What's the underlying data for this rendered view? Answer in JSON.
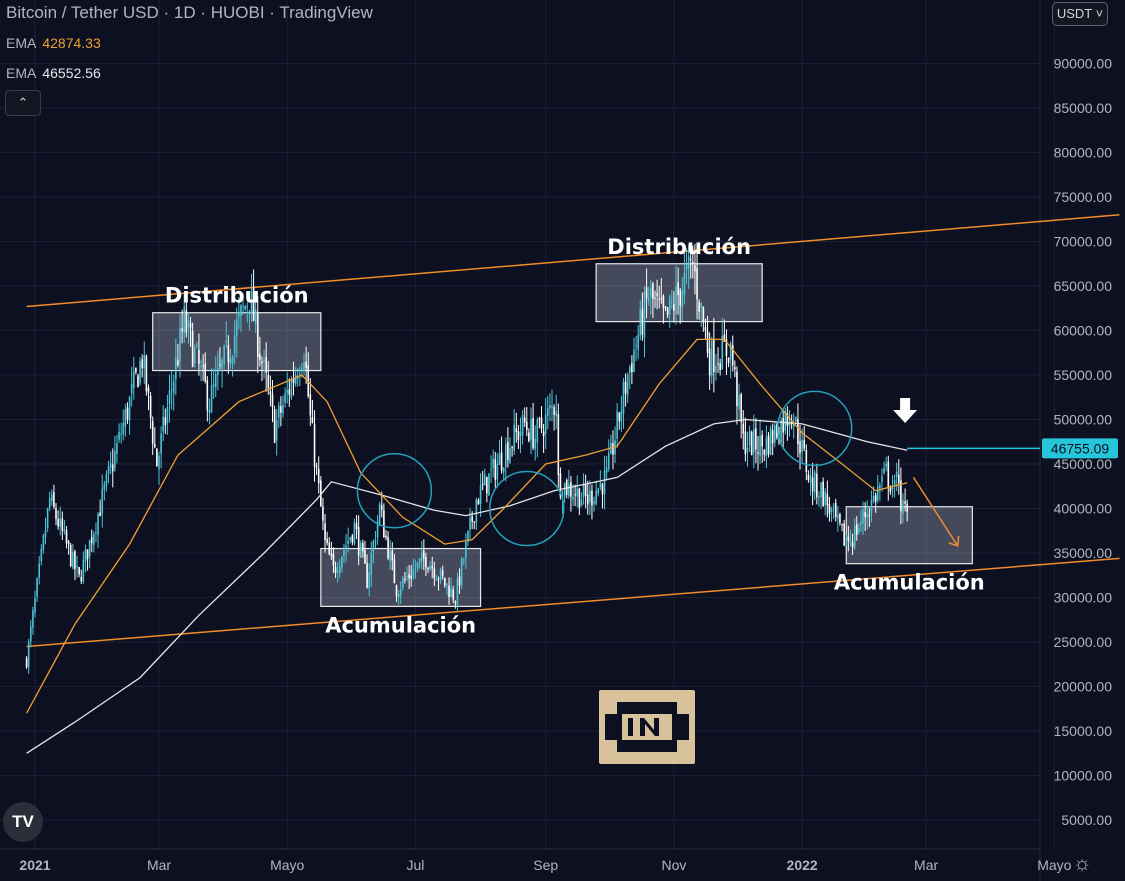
{
  "header": {
    "title": "Bitcoin / Tether USD · 1D · HUOBI · TradingView",
    "ema_short_label": "EMA",
    "ema_short_value": "42874.33",
    "ema_long_label": "EMA",
    "ema_long_value": "46552.56",
    "collapse_icon": "chevron-up-icon"
  },
  "currency_button": "USDT ˅",
  "colors": {
    "background": "#0c1021",
    "candle_up": "#4fc3d6",
    "candle_down": "#ffffff",
    "ema_short": "#f0a030",
    "ema_long": "#e6e6e6",
    "trendline": "#f28c28",
    "price_tag": "#26c6da",
    "circle": "#26a0b8"
  },
  "chart_data": {
    "type": "candlestick",
    "x_ticks": [
      "2021",
      "Mar",
      "Mayo",
      "Jul",
      "Sep",
      "Nov",
      "2022",
      "Mar",
      "Mayo"
    ],
    "y_ticks": [
      "90000.00",
      "85000.00",
      "80000.00",
      "75000.00",
      "70000.00",
      "65000.00",
      "60000.00",
      "55000.00",
      "50000.00",
      "45000.00",
      "40000.00",
      "35000.00",
      "30000.00",
      "25000.00",
      "20000.00",
      "15000.00",
      "10000.00",
      "5000.00"
    ],
    "ylim": [
      2000,
      94000
    ],
    "price_tag": "46755.09",
    "path_points": [
      [
        "2020-12-28",
        23000
      ],
      [
        "2021-01-08",
        41000
      ],
      [
        "2021-01-22",
        32000
      ],
      [
        "2021-02-08",
        46000
      ],
      [
        "2021-02-21",
        57000
      ],
      [
        "2021-02-28",
        45000
      ],
      [
        "2021-03-13",
        61000
      ],
      [
        "2021-03-25",
        52000
      ],
      [
        "2021-04-13",
        64000
      ],
      [
        "2021-04-25",
        49000
      ],
      [
        "2021-05-09",
        58000
      ],
      [
        "2021-05-12",
        50000
      ],
      [
        "2021-05-19",
        36000
      ],
      [
        "2021-05-23",
        33000
      ],
      [
        "2021-06-02",
        38000
      ],
      [
        "2021-06-08",
        32000
      ],
      [
        "2021-06-14",
        40000
      ],
      [
        "2021-06-22",
        31000
      ],
      [
        "2021-07-06",
        34500
      ],
      [
        "2021-07-20",
        30000
      ],
      [
        "2021-07-30",
        41000
      ],
      [
        "2021-08-14",
        47000
      ],
      [
        "2021-08-22",
        49500
      ],
      [
        "2021-08-27",
        48000
      ],
      [
        "2021-09-06",
        52000
      ],
      [
        "2021-09-07",
        43000
      ],
      [
        "2021-09-21",
        41000
      ],
      [
        "2021-09-30",
        43500
      ],
      [
        "2021-10-10",
        55000
      ],
      [
        "2021-10-20",
        64000
      ],
      [
        "2021-10-28",
        61000
      ],
      [
        "2021-11-10",
        67500
      ],
      [
        "2021-11-18",
        57000
      ],
      [
        "2021-11-28",
        58000
      ],
      [
        "2021-12-04",
        47500
      ],
      [
        "2021-12-14",
        47000
      ],
      [
        "2021-12-27",
        51000
      ],
      [
        "2022-01-05",
        43000
      ],
      [
        "2022-01-10",
        42000
      ],
      [
        "2022-01-21",
        36500
      ],
      [
        "2022-01-25",
        36800
      ],
      [
        "2022-02-05",
        41500
      ],
      [
        "2022-02-10",
        44000
      ],
      [
        "2022-02-14",
        42000
      ],
      [
        "2022-02-16",
        44000
      ],
      [
        "2022-02-17",
        40500
      ],
      [
        "2022-02-20",
        39000
      ]
    ],
    "ema_short_points": [
      [
        "2020-12-28",
        17000
      ],
      [
        "2021-01-20",
        27000
      ],
      [
        "2021-02-15",
        36000
      ],
      [
        "2021-03-10",
        46000
      ],
      [
        "2021-04-08",
        52000
      ],
      [
        "2021-05-08",
        55000
      ],
      [
        "2021-05-20",
        52000
      ],
      [
        "2021-06-05",
        44000
      ],
      [
        "2021-06-25",
        39000
      ],
      [
        "2021-07-15",
        36000
      ],
      [
        "2021-07-28",
        36500
      ],
      [
        "2021-08-12",
        40000
      ],
      [
        "2021-09-01",
        45000
      ],
      [
        "2021-09-20",
        46000
      ],
      [
        "2021-10-05",
        47000
      ],
      [
        "2021-10-25",
        54000
      ],
      [
        "2021-11-12",
        59000
      ],
      [
        "2021-11-25",
        59000
      ],
      [
        "2021-12-12",
        54000
      ],
      [
        "2022-01-01",
        48500
      ],
      [
        "2022-01-20",
        45000
      ],
      [
        "2022-02-05",
        42000
      ],
      [
        "2022-02-20",
        42900
      ]
    ],
    "ema_long_points": [
      [
        "2020-12-28",
        12500
      ],
      [
        "2021-01-20",
        16000
      ],
      [
        "2021-02-20",
        21000
      ],
      [
        "2021-03-20",
        28000
      ],
      [
        "2021-04-20",
        35000
      ],
      [
        "2021-05-15",
        41000
      ],
      [
        "2021-05-22",
        43000
      ],
      [
        "2021-06-15",
        41500
      ],
      [
        "2021-07-10",
        39800
      ],
      [
        "2021-07-25",
        39200
      ],
      [
        "2021-08-15",
        40300
      ],
      [
        "2021-09-05",
        42000
      ],
      [
        "2021-10-05",
        43500
      ],
      [
        "2021-10-28",
        47000
      ],
      [
        "2021-11-20",
        49500
      ],
      [
        "2021-12-05",
        50000
      ],
      [
        "2022-01-01",
        49500
      ],
      [
        "2022-02-01",
        47500
      ],
      [
        "2022-02-20",
        46550
      ]
    ],
    "annotations": [
      {
        "type": "rect",
        "name": "distribution-box-1",
        "label": "Distribución",
        "x0": "2021-02-26",
        "x1": "2021-05-17",
        "y0": 55500,
        "y1": 62000
      },
      {
        "type": "rect",
        "name": "accumulation-box-1",
        "label": "Acumulación",
        "x0": "2021-05-17",
        "x1": "2021-08-01",
        "y0": 29000,
        "y1": 35500
      },
      {
        "type": "rect",
        "name": "distribution-box-2",
        "label": "Distribución",
        "x0": "2021-09-25",
        "x1": "2021-12-13",
        "y0": 61000,
        "y1": 67500
      },
      {
        "type": "rect",
        "name": "accumulation-box-2",
        "label": "Acumulación",
        "x0": "2022-01-22",
        "x1": "2022-03-23",
        "y0": 33800,
        "y1": 40200
      }
    ],
    "circles": [
      [
        "2021-06-21",
        42000
      ],
      [
        "2021-08-23",
        40000
      ],
      [
        "2022-01-07",
        49000
      ]
    ],
    "channel_upper": [
      [
        "2020-12-28",
        62700
      ],
      [
        "2022-06-01",
        73000
      ]
    ],
    "channel_lower": [
      [
        "2020-12-28",
        24500
      ],
      [
        "2022-06-01",
        34400
      ]
    ],
    "projection_arrow": [
      [
        "2022-02-23",
        43500
      ],
      [
        "2022-03-16",
        35800
      ]
    ],
    "down_arrow": [
      "2022-02-19",
      49500
    ],
    "price_line": [
      "2022-02-20",
      46755
    ]
  }
}
